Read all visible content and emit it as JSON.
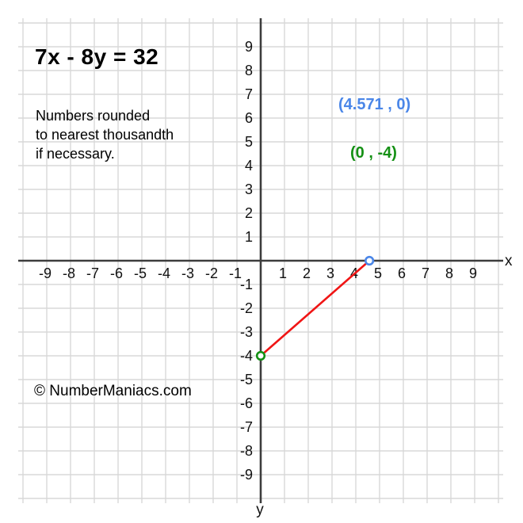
{
  "page": {
    "background": "#ffffff"
  },
  "header": {
    "title": "7x - 8y = 32"
  },
  "note": {
    "lines": [
      "Numbers rounded",
      "to nearest thousandth",
      "if necessary."
    ]
  },
  "watermark": "© NumberManiacs.com",
  "chart_data": {
    "type": "line",
    "title": "7x - 8y = 32",
    "equation": "7x - 8y = 32",
    "points": [
      {
        "name": "x-intercept",
        "x": 4.571,
        "y": 0,
        "label": "(4.571 , 0)",
        "color": "#4a86e8"
      },
      {
        "name": "y-intercept",
        "x": 0,
        "y": -4,
        "label": "(0 , -4)",
        "color": "#149014"
      }
    ],
    "segment": {
      "x1": 0,
      "y1": -4,
      "x2": 4.571,
      "y2": 0,
      "color": "#f01515"
    },
    "axes": {
      "x_label": "x",
      "y_label": "y",
      "x_range": [
        -10,
        10
      ],
      "y_range": [
        -10,
        10
      ],
      "x_ticks": [
        -9,
        -8,
        -7,
        -6,
        -5,
        -4,
        -3,
        -2,
        -1,
        1,
        2,
        3,
        4,
        5,
        6,
        7,
        8,
        9
      ],
      "y_ticks": [
        -9,
        -8,
        -7,
        -6,
        -5,
        -4,
        -3,
        -2,
        -1,
        1,
        2,
        3,
        4,
        5,
        6,
        7,
        8,
        9
      ],
      "grid": true
    },
    "colors": {
      "grid": "#d8d8d8",
      "axis": "#3d3d3d",
      "line": "#f01515",
      "x_intercept": "#4a86e8",
      "y_intercept": "#149014",
      "point_fill": "#ffffff"
    }
  }
}
